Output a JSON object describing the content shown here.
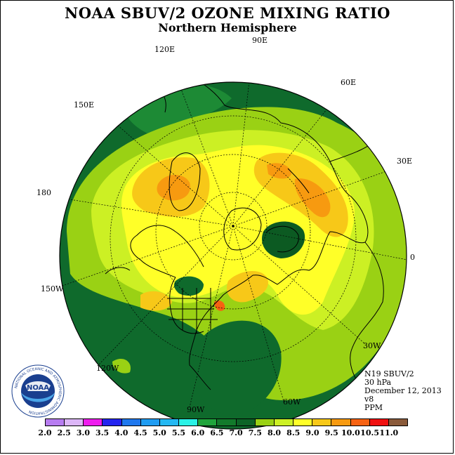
{
  "title": "NOAA SBUV/2 OZONE MIXING RATIO",
  "subtitle": "Northern Hemisphere",
  "longitude_labels": [
    "90E",
    "60E",
    "30E",
    "0",
    "30W",
    "60W",
    "90W",
    "120W",
    "150W",
    "180",
    "150E",
    "120E"
  ],
  "info": {
    "satellite": "N19 SBUV/2",
    "level": "30 hPa",
    "date": "December 12, 2013",
    "version": "v8",
    "units": "PPM"
  },
  "logo": {
    "text": "NOAA",
    "ring_text": "NATIONAL OCEANIC AND ATMOSPHERIC ADMINISTRATION",
    "bottom_text": "U.S. DEPARTMENT OF COMMERCE"
  },
  "colorbar": {
    "labels": [
      "2.0",
      "2.5",
      "3.0",
      "3.5",
      "4.0",
      "4.5",
      "5.0",
      "5.5",
      "6.0",
      "6.5",
      "7.0",
      "7.5",
      "8.0",
      "8.5",
      "9.0",
      "9.5",
      "10.0",
      "10.5",
      "11.0"
    ],
    "colors": [
      "#b77cf0",
      "#dcb6f7",
      "#ee1cee",
      "#2424f0",
      "#1f78ee",
      "#1f9cf2",
      "#24b8f2",
      "#2af2e6",
      "#1fa43b",
      "#127a2b",
      "#0c6426",
      "#9ad114",
      "#ccf024",
      "#ffff28",
      "#f7c818",
      "#f79a10",
      "#f76212",
      "#f01010",
      "#8a5a3a"
    ]
  },
  "colors": {
    "ocean_background": "#0e6d2e",
    "land_lines": "#000000",
    "grid_lines": "#000000"
  }
}
